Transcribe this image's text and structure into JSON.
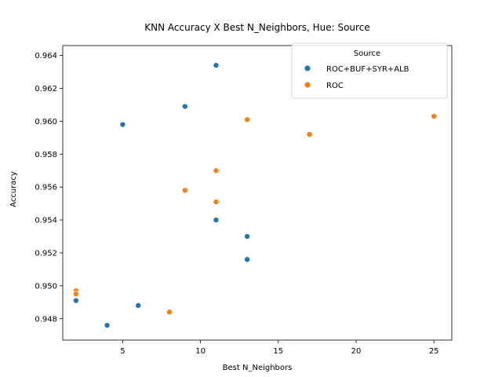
{
  "chart_data": {
    "type": "scatter",
    "title": "KNN Accuracy X Best N_Neighbors, Hue: Source",
    "xlabel": "Best N_Neighbors",
    "ylabel": "Accuracy",
    "xlim": [
      1.15,
      26.15
    ],
    "ylim": [
      0.9467,
      0.9646
    ],
    "xticks": [
      5,
      10,
      15,
      20,
      25
    ],
    "xtick_labels": [
      "5",
      "10",
      "15",
      "20",
      "25"
    ],
    "yticks": [
      0.948,
      0.95,
      0.952,
      0.954,
      0.956,
      0.958,
      0.96,
      0.962,
      0.964
    ],
    "ytick_labels": [
      "0.948",
      "0.950",
      "0.952",
      "0.954",
      "0.956",
      "0.958",
      "0.960",
      "0.962",
      "0.964"
    ],
    "grid": false,
    "legend": {
      "title": "Source",
      "placement": "top-right"
    },
    "series": [
      {
        "name": "ROC+BUF+SYR+ALB",
        "color": "#1f77b4",
        "points": [
          {
            "x": 11,
            "y": 0.9634
          },
          {
            "x": 9,
            "y": 0.9609
          },
          {
            "x": 5,
            "y": 0.9598
          },
          {
            "x": 11,
            "y": 0.954
          },
          {
            "x": 13,
            "y": 0.953
          },
          {
            "x": 13,
            "y": 0.9516
          },
          {
            "x": 2,
            "y": 0.9491
          },
          {
            "x": 6,
            "y": 0.9488
          },
          {
            "x": 4,
            "y": 0.9476
          }
        ]
      },
      {
        "name": "ROC",
        "color": "#ff7f0e",
        "points": [
          {
            "x": 25,
            "y": 0.9603
          },
          {
            "x": 13,
            "y": 0.9601
          },
          {
            "x": 17,
            "y": 0.9592
          },
          {
            "x": 11,
            "y": 0.957
          },
          {
            "x": 9,
            "y": 0.9558
          },
          {
            "x": 11,
            "y": 0.9551
          },
          {
            "x": 2,
            "y": 0.9497
          },
          {
            "x": 2,
            "y": 0.9495
          },
          {
            "x": 8,
            "y": 0.9484
          }
        ]
      }
    ]
  }
}
